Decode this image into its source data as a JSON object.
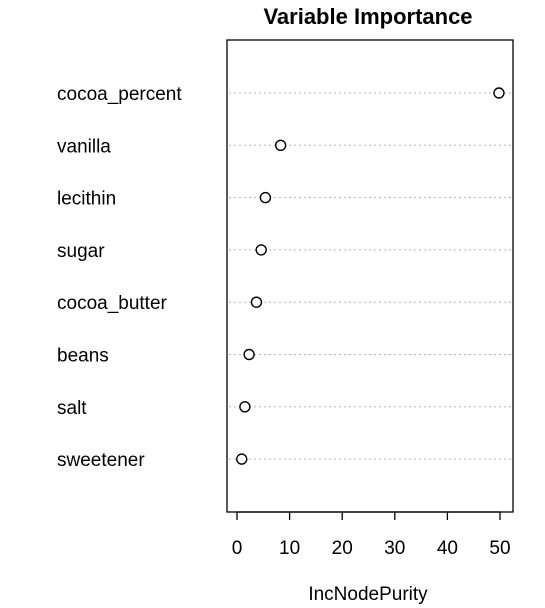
{
  "chart_data": {
    "type": "scatter",
    "title": "Variable Importance",
    "xlabel": "IncNodePurity",
    "ylabel": "",
    "categories": [
      "cocoa_percent",
      "vanilla",
      "lecithin",
      "sugar",
      "cocoa_butter",
      "beans",
      "salt",
      "sweetener"
    ],
    "values": [
      49.8,
      8.3,
      5.4,
      4.6,
      3.7,
      2.3,
      1.5,
      0.9
    ],
    "xlim": [
      0,
      50
    ],
    "xticks": [
      0,
      10,
      20,
      30,
      40,
      50
    ],
    "grid": false,
    "legend": "none"
  }
}
